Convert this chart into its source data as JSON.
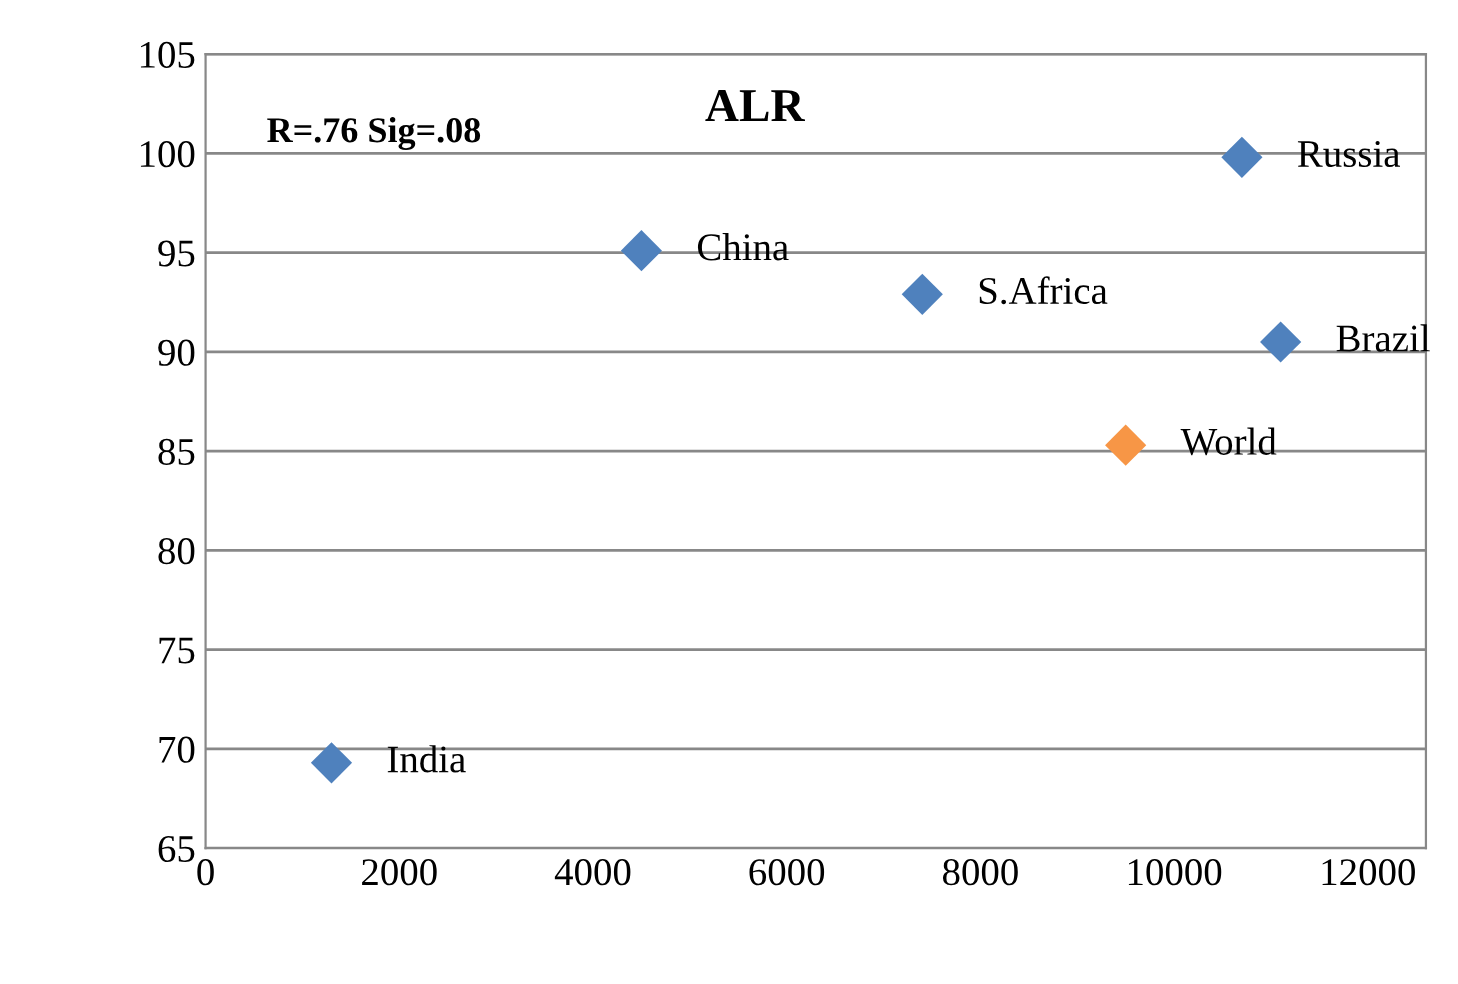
{
  "chart_data": {
    "type": "scatter",
    "title": "ALR",
    "x": [
      1300,
      4500,
      7400,
      10700,
      11100,
      9500
    ],
    "values": [
      69.3,
      95.1,
      92.9,
      99.8,
      90.5,
      85.3
    ],
    "colors": [
      "#4f81bd",
      "#4f81bd",
      "#4f81bd",
      "#4f81bd",
      "#4f81bd",
      "#f79646"
    ],
    "annotations": [
      "R=.76 Sig=.08",
      {
        "text": "India",
        "x": 1300,
        "y": 69.3
      },
      {
        "text": "China",
        "x": 4500,
        "y": 95.1
      },
      {
        "text": "S.Africa",
        "x": 7400,
        "y": 92.9
      },
      {
        "text": "Russia",
        "x": 10700,
        "y": 99.8
      },
      {
        "text": "Brazil",
        "x": 11100,
        "y": 90.5
      },
      {
        "text": "World",
        "x": 9500,
        "y": 85.3
      }
    ],
    "xlim": [
      0,
      12600
    ],
    "xticks": [
      0,
      2000,
      4000,
      6000,
      8000,
      10000,
      12000
    ],
    "ylim": [
      65,
      105
    ],
    "yticks": [
      65,
      70,
      75,
      80,
      85,
      90,
      95,
      100,
      105
    ],
    "grid": "y",
    "legend": false,
    "marker": "diamond"
  }
}
